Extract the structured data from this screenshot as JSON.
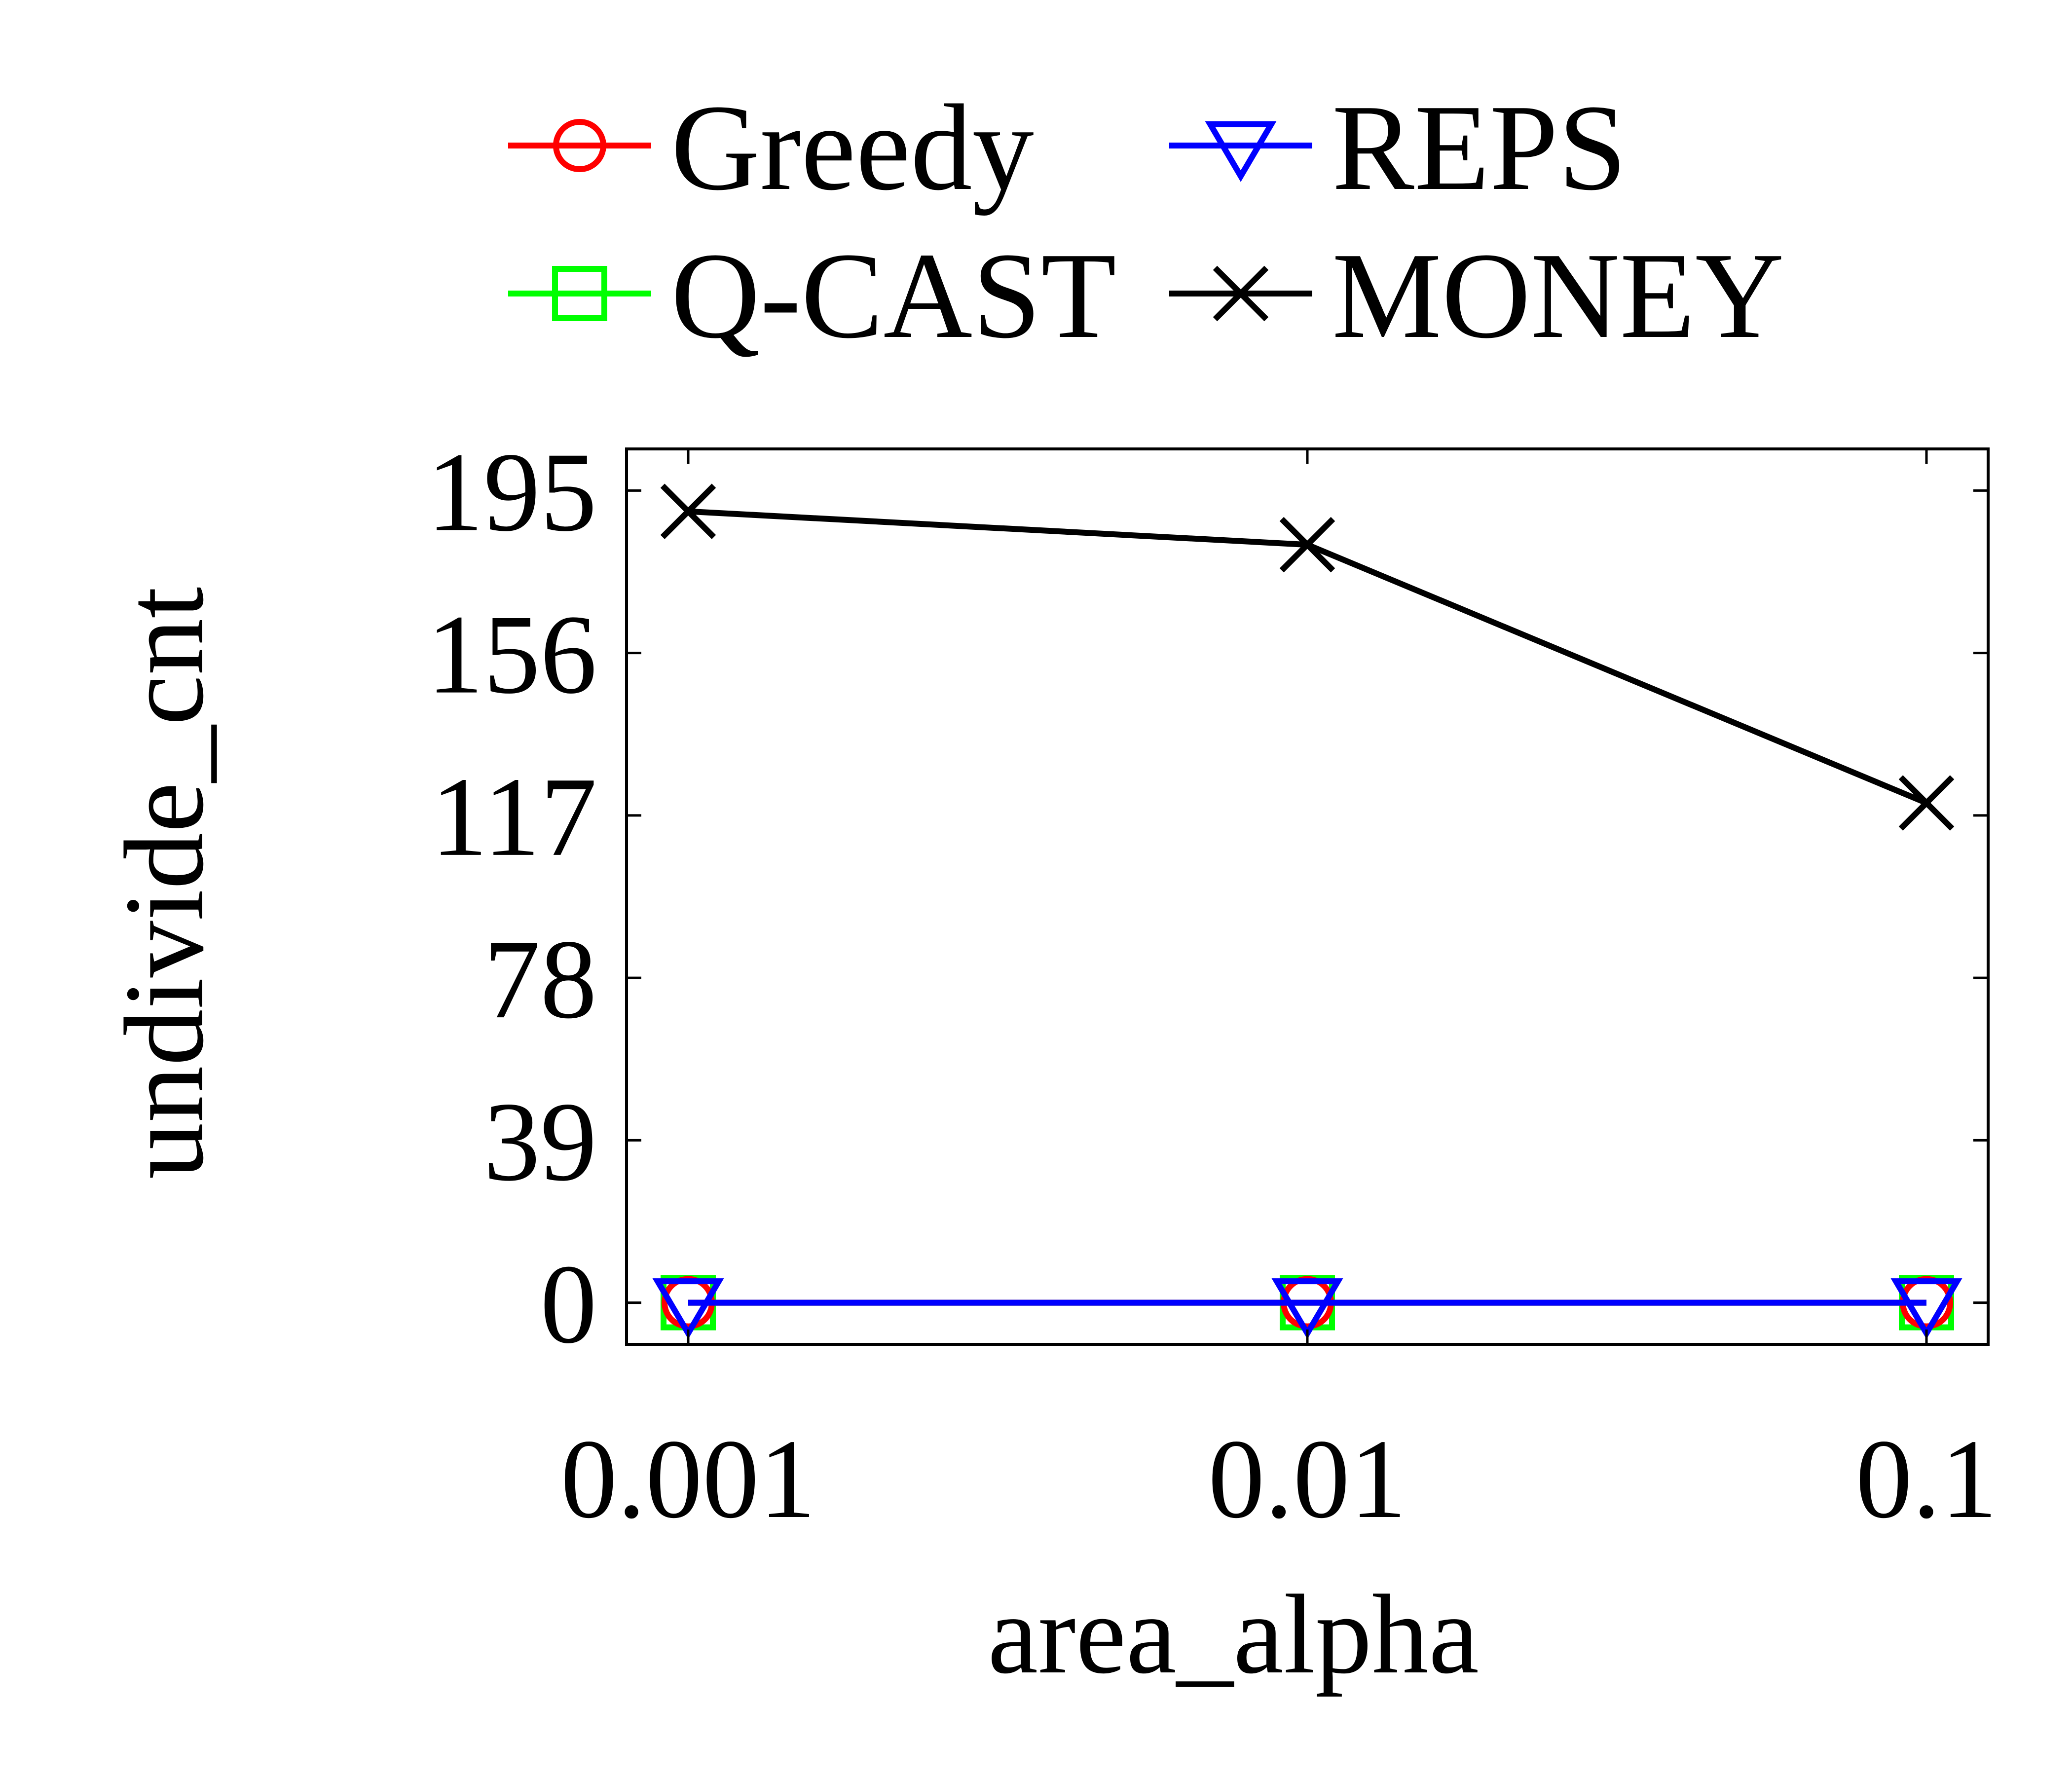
{
  "chart_data": {
    "type": "line",
    "xlabel": "area_alpha",
    "ylabel": "undivide_cnt",
    "x_scale": "log",
    "categories": [
      "0.001",
      "0.01",
      "0.1"
    ],
    "x": [
      0.001,
      0.01,
      0.1
    ],
    "yticks": [
      0,
      39,
      78,
      117,
      156,
      195
    ],
    "ylim": [
      -10,
      205
    ],
    "grid": false,
    "legend_position": "top",
    "series": [
      {
        "name": "Greedy",
        "color": "#ff0000",
        "marker": "circle",
        "values": [
          0,
          0,
          0
        ]
      },
      {
        "name": "REPS",
        "color": "#0000ff",
        "marker": "triangle-down",
        "values": [
          0,
          0,
          0
        ]
      },
      {
        "name": "Q-CAST",
        "color": "#00ff00",
        "marker": "square",
        "values": [
          0,
          0,
          0
        ]
      },
      {
        "name": "MONEY",
        "color": "#000000",
        "marker": "x",
        "values": [
          190,
          182,
          120
        ]
      }
    ]
  }
}
